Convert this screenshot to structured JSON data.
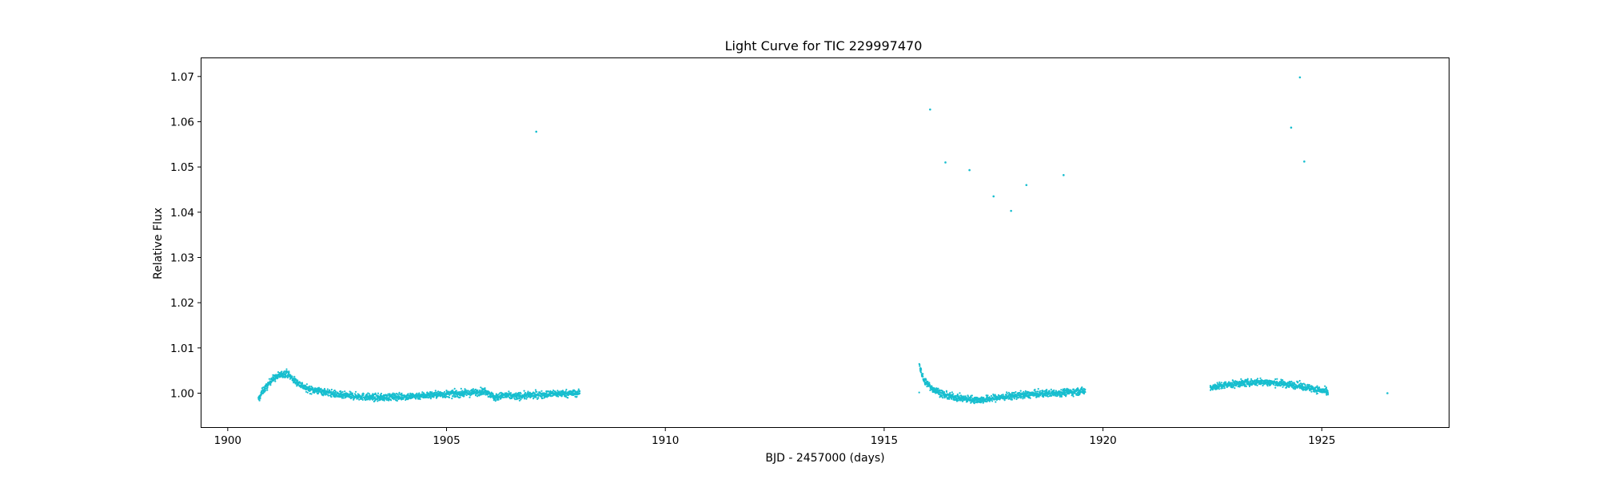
{
  "chart_data": {
    "type": "scatter",
    "title": "Light Curve for TIC 229997470",
    "xlabel": "BJD - 2457000 (days)",
    "ylabel": "Relative Flux",
    "xlim": [
      1899.4,
      1927.9
    ],
    "ylim": [
      0.9925,
      1.0742
    ],
    "xticks": [
      1900,
      1905,
      1910,
      1915,
      1920,
      1925
    ],
    "yticks": [
      1.0,
      1.01,
      1.02,
      1.03,
      1.04,
      1.05,
      1.06,
      1.07
    ],
    "ytick_format_decimals": 2,
    "grid": false,
    "legend": "none",
    "marker_color": "#17becf",
    "series": [
      {
        "values_description": "dense TESS photometry; trend points (x, y) interpolated with ~0.001 scatter",
        "segments": [
          {
            "x": [
              1900.7,
              1900.8,
              1900.9,
              1901.0,
              1901.2,
              1901.35,
              1901.5,
              1901.8,
              1902.2,
              1902.6,
              1903.0,
              1903.4,
              1903.8,
              1904.2,
              1904.6,
              1905.0,
              1905.5,
              1905.9,
              1906.1,
              1906.3,
              1906.6,
              1907.0,
              1907.5,
              1908.05
            ],
            "y": [
              0.9985,
              1.0005,
              1.0015,
              1.003,
              1.004,
              1.0045,
              1.003,
              1.001,
              1.0003,
              0.9995,
              0.9993,
              0.999,
              0.9992,
              0.9993,
              0.9996,
              0.9998,
              1.0,
              1.0005,
              0.999,
              0.9995,
              0.9993,
              0.9996,
              0.9999,
              1.0
            ]
          },
          {
            "x": [
              1915.8,
              1915.9,
              1916.1,
              1916.4,
              1916.8,
              1917.2,
              1917.6,
              1918.0,
              1918.5,
              1919.0,
              1919.6
            ],
            "y": [
              1.0065,
              1.003,
              1.001,
              0.9995,
              0.9988,
              0.9985,
              0.999,
              0.9995,
              0.9998,
              1.0001,
              1.0005
            ]
          },
          {
            "x": [
              1922.45,
              1922.8,
              1923.2,
              1923.6,
              1924.0,
              1924.4,
              1924.8,
              1925.15
            ],
            "y": [
              1.0013,
              1.0018,
              1.0022,
              1.0025,
              1.0022,
              1.0018,
              1.001,
              1.0002
            ]
          }
        ],
        "outliers": [
          {
            "x": 1907.05,
            "y": 1.0578
          },
          {
            "x": 1916.05,
            "y": 1.0627
          },
          {
            "x": 1916.4,
            "y": 1.051
          },
          {
            "x": 1916.95,
            "y": 1.0493
          },
          {
            "x": 1917.5,
            "y": 1.0435
          },
          {
            "x": 1917.9,
            "y": 1.0403
          },
          {
            "x": 1918.25,
            "y": 1.046
          },
          {
            "x": 1919.1,
            "y": 1.0482
          },
          {
            "x": 1924.3,
            "y": 1.0587
          },
          {
            "x": 1924.5,
            "y": 1.0698
          },
          {
            "x": 1924.6,
            "y": 1.0512
          },
          {
            "x": 1926.5,
            "y": 1.0
          }
        ]
      }
    ]
  }
}
